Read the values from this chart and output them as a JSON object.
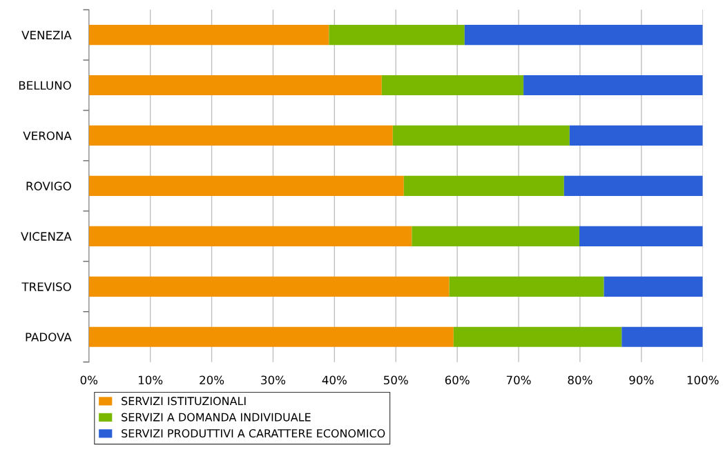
{
  "chart_data": {
    "type": "bar",
    "orientation": "horizontal",
    "stacked": true,
    "categories": [
      "VENEZIA",
      "BELLUNO",
      "VERONA",
      "ROVIGO",
      "VICENZA",
      "TREVISO",
      "PADOVA"
    ],
    "series": [
      {
        "name": "SERVIZI ISTITUZIONALI",
        "color": "#f39200",
        "values": [
          39.1,
          47.7,
          49.5,
          51.3,
          52.6,
          58.7,
          59.4
        ]
      },
      {
        "name": "SERVIZI A DOMANDA INDIVIDUALE",
        "color": "#7ab800",
        "values": [
          22.1,
          23.1,
          28.8,
          26.1,
          27.3,
          25.2,
          27.4
        ]
      },
      {
        "name": "SERVIZI PRODUTTIVI A CARATTERE ECONOMICO",
        "color": "#2a5fd8",
        "values": [
          38.8,
          29.2,
          21.7,
          22.6,
          20.1,
          16.1,
          13.2
        ]
      }
    ],
    "xlim": [
      0,
      100
    ],
    "xticks": [
      {
        "value": 0,
        "label": "0%"
      },
      {
        "value": 10,
        "label": "10%"
      },
      {
        "value": 20,
        "label": "20%"
      },
      {
        "value": 30,
        "label": "30%"
      },
      {
        "value": 40,
        "label": "40%"
      },
      {
        "value": 50,
        "label": "50%"
      },
      {
        "value": 60,
        "label": "60%"
      },
      {
        "value": 70,
        "label": "70%"
      },
      {
        "value": 80,
        "label": "80%"
      },
      {
        "value": 90,
        "label": "90%"
      },
      {
        "value": 100,
        "label": "100%"
      }
    ],
    "grid": "x",
    "legend": "bottom"
  }
}
